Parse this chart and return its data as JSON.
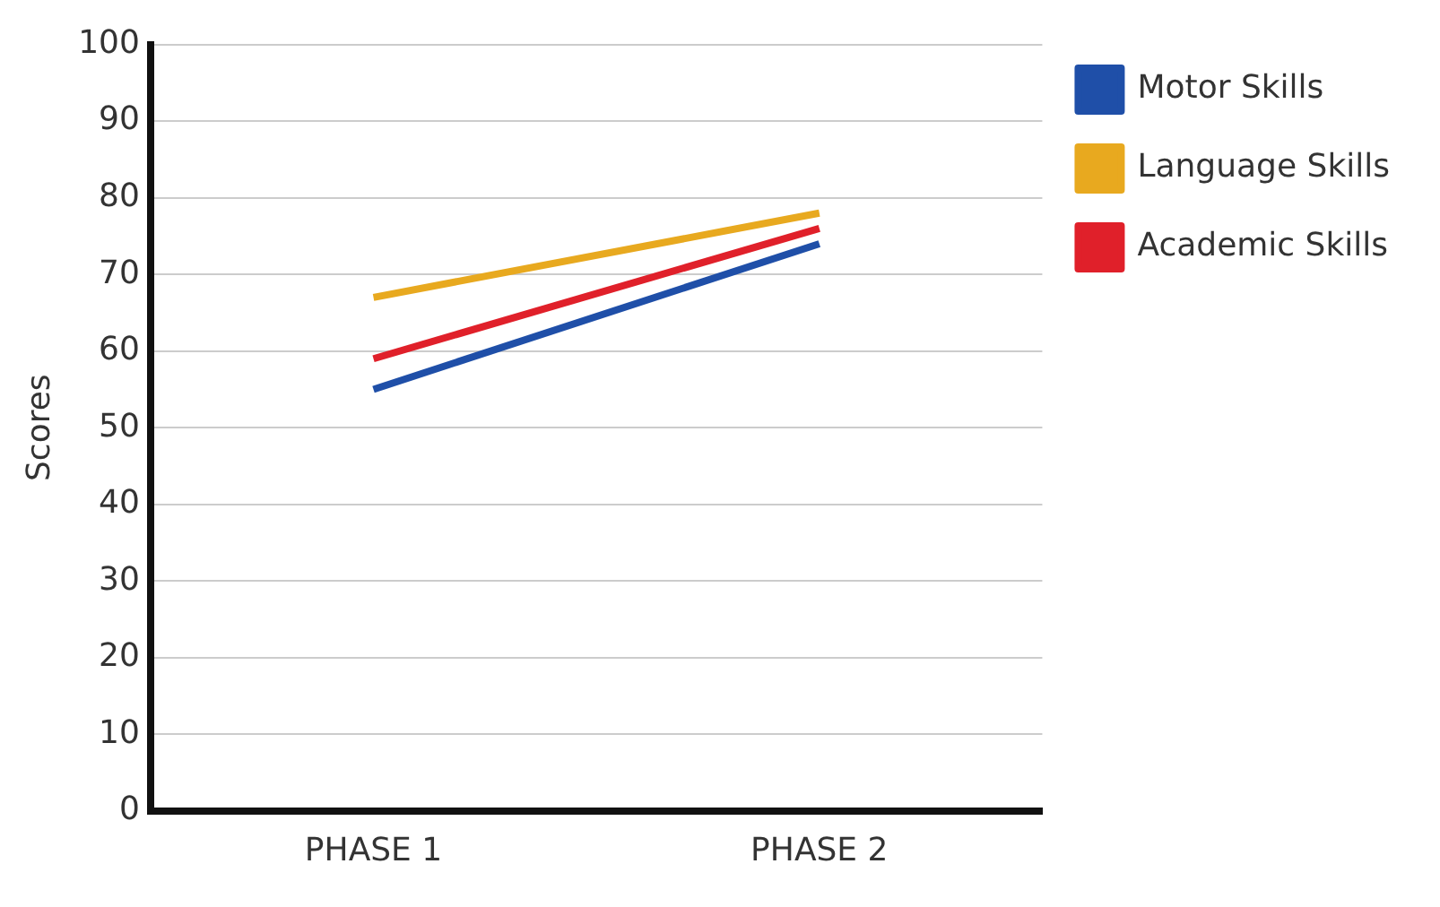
{
  "chart_data": {
    "type": "line",
    "ylabel": "Scores",
    "categories": [
      "PHASE 1",
      "PHASE 2"
    ],
    "series": [
      {
        "name": "Motor Skills",
        "color": "#1f4fa8",
        "values": [
          55,
          74
        ]
      },
      {
        "name": "Language Skills",
        "color": "#e8a91f",
        "values": [
          67,
          78
        ]
      },
      {
        "name": "Academic Skills",
        "color": "#e0202a",
        "values": [
          59,
          76
        ]
      }
    ],
    "ylim": [
      0,
      100
    ],
    "yticks": [
      0,
      10,
      20,
      30,
      40,
      50,
      60,
      70,
      80,
      90,
      100
    ],
    "grid": "y",
    "legend": "right",
    "marker": "none",
    "line_style": "solid"
  }
}
